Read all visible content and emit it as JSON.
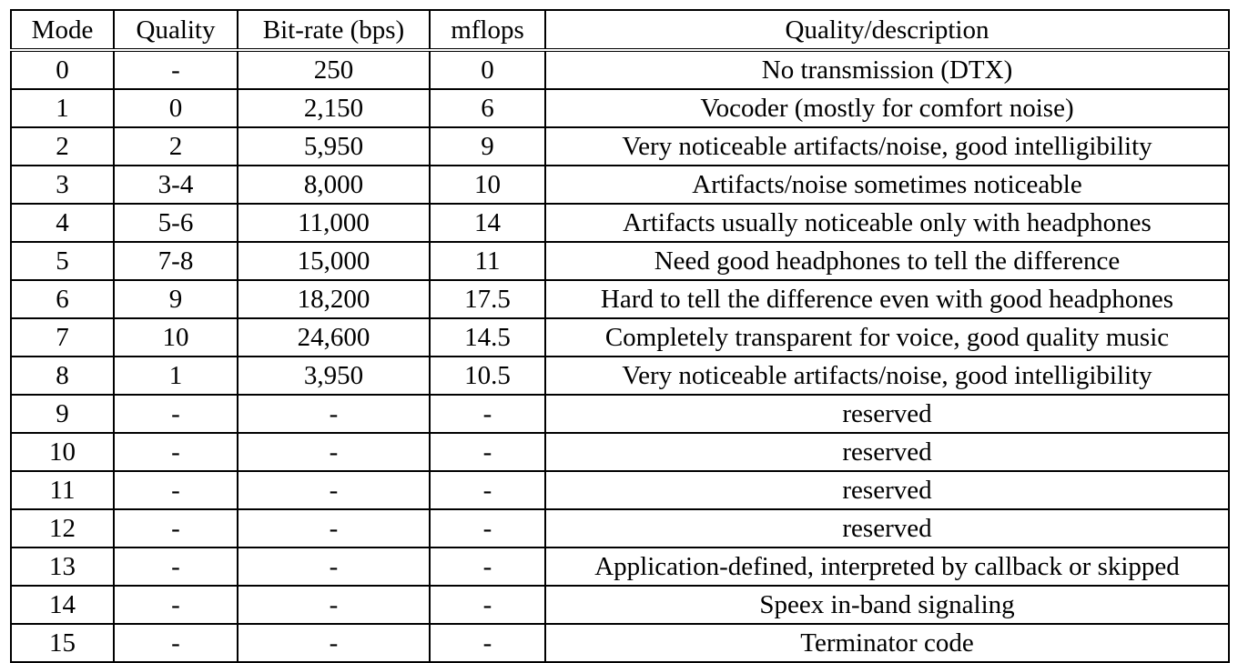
{
  "table": {
    "headers": [
      "Mode",
      "Quality",
      "Bit-rate (bps)",
      "mflops",
      "Quality/description"
    ],
    "rows": [
      [
        "0",
        "-",
        "250",
        "0",
        "No transmission (DTX)"
      ],
      [
        "1",
        "0",
        "2,150",
        "6",
        "Vocoder (mostly for comfort noise)"
      ],
      [
        "2",
        "2",
        "5,950",
        "9",
        "Very noticeable artifacts/noise, good intelligibility"
      ],
      [
        "3",
        "3-4",
        "8,000",
        "10",
        "Artifacts/noise sometimes noticeable"
      ],
      [
        "4",
        "5-6",
        "11,000",
        "14",
        "Artifacts usually noticeable only with headphones"
      ],
      [
        "5",
        "7-8",
        "15,000",
        "11",
        "Need good headphones to tell the difference"
      ],
      [
        "6",
        "9",
        "18,200",
        "17.5",
        "Hard to tell the difference even with good headphones"
      ],
      [
        "7",
        "10",
        "24,600",
        "14.5",
        "Completely transparent for voice, good quality music"
      ],
      [
        "8",
        "1",
        "3,950",
        "10.5",
        "Very noticeable artifacts/noise, good intelligibility"
      ],
      [
        "9",
        "-",
        "-",
        "-",
        "reserved"
      ],
      [
        "10",
        "-",
        "-",
        "-",
        "reserved"
      ],
      [
        "11",
        "-",
        "-",
        "-",
        "reserved"
      ],
      [
        "12",
        "-",
        "-",
        "-",
        "reserved"
      ],
      [
        "13",
        "-",
        "-",
        "-",
        "Application-defined, interpreted by callback or skipped"
      ],
      [
        "14",
        "-",
        "-",
        "-",
        "Speex in-band signaling"
      ],
      [
        "15",
        "-",
        "-",
        "-",
        "Terminator code"
      ]
    ]
  }
}
